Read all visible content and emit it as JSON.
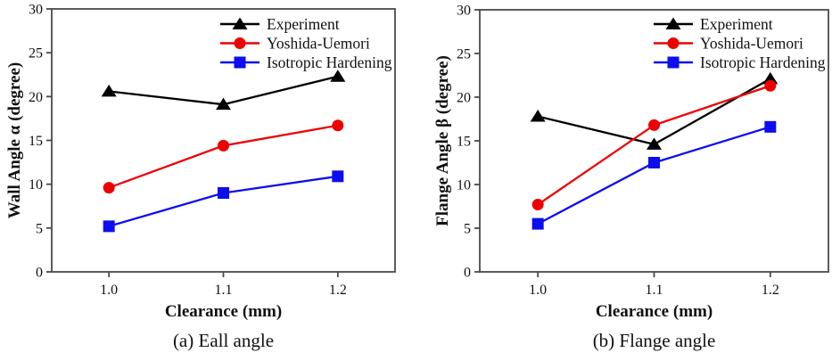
{
  "figure": {
    "background": "#ffffff",
    "frame_color": "#4a4a4a",
    "text_color": "#111111"
  },
  "chart_data": [
    {
      "id": "wall-angle",
      "type": "line",
      "caption": "(a) Eall angle",
      "xlabel": "Clearance (mm)",
      "ylabel": "Wall Angle α (degree)",
      "x": [
        1.0,
        1.1,
        1.2
      ],
      "xticklabels": [
        "1.0",
        "1.1",
        "1.2"
      ],
      "xlim": [
        0.95,
        1.25
      ],
      "ylim": [
        0,
        30
      ],
      "yticks": [
        0,
        5,
        10,
        15,
        20,
        25,
        30
      ],
      "grid": false,
      "legend_position": "top-right-inside",
      "series": [
        {
          "name": "Experiment",
          "marker": "triangle",
          "color": "#000000",
          "values": [
            20.6,
            19.1,
            22.3
          ]
        },
        {
          "name": "Yoshida-Uemori",
          "marker": "circle",
          "color": "#ee0000",
          "values": [
            9.6,
            14.4,
            16.7
          ]
        },
        {
          "name": "Isotropic Hardening",
          "marker": "square",
          "color": "#0d0dee",
          "values": [
            5.2,
            9.0,
            10.9
          ]
        }
      ]
    },
    {
      "id": "flange-angle",
      "type": "line",
      "caption": "(b) Flange angle",
      "xlabel": "Clearance (mm)",
      "ylabel": "Flange Angle β (degree)",
      "x": [
        1.0,
        1.1,
        1.2
      ],
      "xticklabels": [
        "1.0",
        "1.1",
        "1.2"
      ],
      "xlim": [
        0.95,
        1.25
      ],
      "ylim": [
        0,
        30
      ],
      "yticks": [
        0,
        5,
        10,
        15,
        20,
        25,
        30
      ],
      "grid": false,
      "legend_position": "top-right-inside",
      "series": [
        {
          "name": "Experiment",
          "marker": "triangle",
          "color": "#000000",
          "values": [
            17.8,
            14.6,
            22.1
          ]
        },
        {
          "name": "Yoshida-Uemori",
          "marker": "circle",
          "color": "#ee0000",
          "values": [
            7.7,
            16.8,
            21.3
          ]
        },
        {
          "name": "Isotropic Hardening",
          "marker": "square",
          "color": "#0d0dee",
          "values": [
            5.5,
            12.5,
            16.6
          ]
        }
      ]
    }
  ]
}
